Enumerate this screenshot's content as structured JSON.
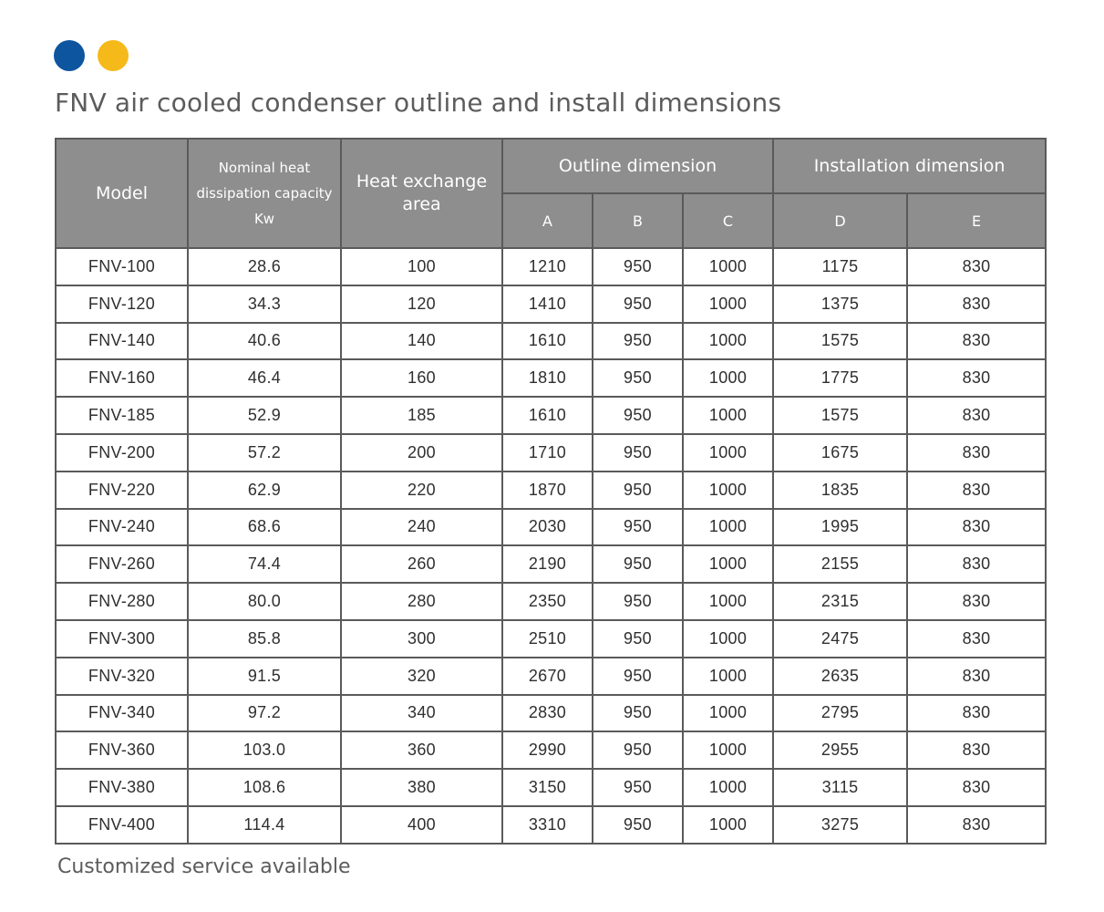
{
  "colors": {
    "dot_blue": "#0e55a0",
    "dot_yellow": "#f6b91a",
    "header_bg": "#8e8e8e"
  },
  "title": "FNV air cooled condenser outline and install dimensions",
  "table": {
    "headers": {
      "model": "Model",
      "nominal_line1": "Nominal heat",
      "nominal_line2": "dissipation capacity",
      "nominal_unit": "Kw",
      "area_line1": "Heat exchange",
      "area_line2": "area",
      "outline_group": "Outline dimension",
      "install_group": "Installation dimension",
      "a": "A",
      "b": "B",
      "c": "C",
      "d": "D",
      "e": "E"
    },
    "rows": [
      [
        "FNV-100",
        "28.6",
        "100",
        "1210",
        "950",
        "1000",
        "1175",
        "830"
      ],
      [
        "FNV-120",
        "34.3",
        "120",
        "1410",
        "950",
        "1000",
        "1375",
        "830"
      ],
      [
        "FNV-140",
        "40.6",
        "140",
        "1610",
        "950",
        "1000",
        "1575",
        "830"
      ],
      [
        "FNV-160",
        "46.4",
        "160",
        "1810",
        "950",
        "1000",
        "1775",
        "830"
      ],
      [
        "FNV-185",
        "52.9",
        "185",
        "1610",
        "950",
        "1000",
        "1575",
        "830"
      ],
      [
        "FNV-200",
        "57.2",
        "200",
        "1710",
        "950",
        "1000",
        "1675",
        "830"
      ],
      [
        "FNV-220",
        "62.9",
        "220",
        "1870",
        "950",
        "1000",
        "1835",
        "830"
      ],
      [
        "FNV-240",
        "68.6",
        "240",
        "2030",
        "950",
        "1000",
        "1995",
        "830"
      ],
      [
        "FNV-260",
        "74.4",
        "260",
        "2190",
        "950",
        "1000",
        "2155",
        "830"
      ],
      [
        "FNV-280",
        "80.0",
        "280",
        "2350",
        "950",
        "1000",
        "2315",
        "830"
      ],
      [
        "FNV-300",
        "85.8",
        "300",
        "2510",
        "950",
        "1000",
        "2475",
        "830"
      ],
      [
        "FNV-320",
        "91.5",
        "320",
        "2670",
        "950",
        "1000",
        "2635",
        "830"
      ],
      [
        "FNV-340",
        "97.2",
        "340",
        "2830",
        "950",
        "1000",
        "2795",
        "830"
      ],
      [
        "FNV-360",
        "103.0",
        "360",
        "2990",
        "950",
        "1000",
        "2955",
        "830"
      ],
      [
        "FNV-380",
        "108.6",
        "380",
        "3150",
        "950",
        "1000",
        "3115",
        "830"
      ],
      [
        "FNV-400",
        "114.4",
        "400",
        "3310",
        "950",
        "1000",
        "3275",
        "830"
      ]
    ]
  },
  "footnote": "Customized service available"
}
